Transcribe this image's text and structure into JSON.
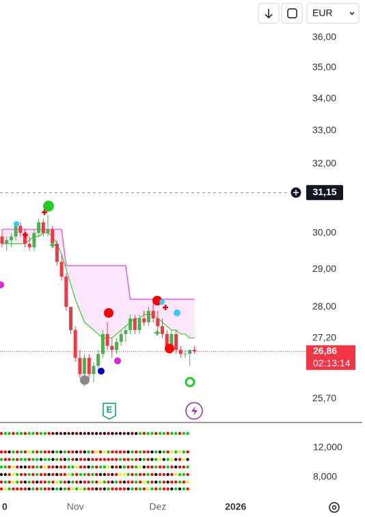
{
  "toolbar": {
    "currency": "EUR"
  },
  "chart_data": {
    "type": "candlestick",
    "log_scale": true,
    "ylim": [
      25.17,
      37.28
    ],
    "yticks": [
      {
        "value": 36,
        "label": "36,00"
      },
      {
        "value": 35,
        "label": "35,00"
      },
      {
        "value": 34,
        "label": "34,00"
      },
      {
        "value": 33,
        "label": "33,00"
      },
      {
        "value": 32,
        "label": "32,00"
      },
      {
        "value": 30,
        "label": "30,00"
      },
      {
        "value": 29,
        "label": "29,00"
      },
      {
        "value": 28,
        "label": "28,00"
      },
      {
        "value": 27.2,
        "label": "27,20"
      },
      {
        "value": 25.7,
        "label": "25,70"
      }
    ],
    "categories": [
      "0",
      null,
      null,
      null,
      null,
      null,
      null,
      null,
      null,
      null,
      null,
      null,
      null,
      null,
      null,
      null,
      "Nov",
      null,
      null,
      null,
      null,
      null,
      null,
      null,
      null,
      null,
      null,
      null,
      null,
      null,
      null,
      null,
      null,
      null,
      "Dez",
      null,
      null,
      null,
      null,
      null,
      null,
      null,
      null,
      null,
      null,
      null,
      null,
      null,
      null,
      null,
      null,
      "2026"
    ],
    "open": [
      29.9,
      29.7,
      29.8,
      29.9,
      30.2,
      30.0,
      29.7,
      29.6,
      30.0,
      30.3,
      30.0,
      30.1,
      29.7,
      29.2,
      28.8,
      28.0,
      27.4,
      26.7,
      26.3,
      26.7,
      26.3,
      26.5,
      26.8,
      27.3,
      27.0,
      26.9,
      27.1,
      27.3,
      27.4,
      27.7,
      27.4,
      27.7,
      27.6,
      27.9,
      27.7,
      27.5,
      27.3,
      27.0,
      27.3,
      26.9,
      26.8,
      26.8,
      26.9,
      null,
      null,
      null,
      null,
      null,
      null,
      null,
      null,
      null
    ],
    "high": [
      30.1,
      29.9,
      30.0,
      30.3,
      30.3,
      30.1,
      29.9,
      30.1,
      30.4,
      30.4,
      30.5,
      30.2,
      29.8,
      29.4,
      28.9,
      28.0,
      27.5,
      26.9,
      26.8,
      26.8,
      26.6,
      26.9,
      27.4,
      27.6,
      27.2,
      27.2,
      27.4,
      27.5,
      27.8,
      27.8,
      27.8,
      27.9,
      28.0,
      28.1,
      27.9,
      27.7,
      27.4,
      27.4,
      27.4,
      27.0,
      26.9,
      26.9,
      27.0,
      null,
      null,
      null,
      null,
      null,
      null,
      null,
      null,
      null
    ],
    "low": [
      29.6,
      29.5,
      29.6,
      29.8,
      29.9,
      29.6,
      29.5,
      29.5,
      29.9,
      29.9,
      29.9,
      29.6,
      29.1,
      28.7,
      27.9,
      27.3,
      26.6,
      26.2,
      26.0,
      26.2,
      26.1,
      26.4,
      26.7,
      26.9,
      26.7,
      26.8,
      27.0,
      27.1,
      27.3,
      27.3,
      27.3,
      27.5,
      27.5,
      27.6,
      27.4,
      27.2,
      26.9,
      26.9,
      26.8,
      26.7,
      26.7,
      26.5,
      26.8,
      null,
      null,
      null,
      null,
      null,
      null,
      null,
      null,
      null
    ],
    "close": [
      29.7,
      29.8,
      29.9,
      30.2,
      30.0,
      29.7,
      29.6,
      30.0,
      30.3,
      30.0,
      30.1,
      29.7,
      29.2,
      28.8,
      28.0,
      27.4,
      26.7,
      26.3,
      26.7,
      26.3,
      26.5,
      26.8,
      27.3,
      27.0,
      26.9,
      27.1,
      27.3,
      27.4,
      27.7,
      27.4,
      27.7,
      27.6,
      27.9,
      27.7,
      27.5,
      27.3,
      27.0,
      27.3,
      26.9,
      26.8,
      26.8,
      26.9,
      26.86,
      null,
      null,
      null,
      null,
      null,
      null,
      null,
      null,
      null
    ],
    "up_color": "#4caf50",
    "down_color": "#f23645",
    "series": [
      {
        "color": "#e040e0",
        "values": [
          30.1,
          30.1,
          30.1,
          30.1,
          30.1,
          30.1,
          30.1,
          30.1,
          30.1,
          30.1,
          30.1,
          30.1,
          30.1,
          30.1,
          29.1,
          29.1,
          29.1,
          29.1,
          29.1,
          29.1,
          29.1,
          29.1,
          29.1,
          29.1,
          29.1,
          29.1,
          29.1,
          29.1,
          28.2,
          28.2,
          28.2,
          28.2,
          28.2,
          28.2,
          28.2,
          28.2,
          28.2,
          28.2,
          28.2,
          28.2,
          28.2,
          28.2,
          28.2,
          null,
          null,
          null,
          null,
          null,
          null,
          null,
          null,
          null
        ]
      },
      {
        "color": "#33cc33",
        "values": [
          29.7,
          29.7,
          29.7,
          29.7,
          29.7,
          29.7,
          29.8,
          29.9,
          29.9,
          30.0,
          30.0,
          29.9,
          29.7,
          29.4,
          29.0,
          28.6,
          28.2,
          27.9,
          27.6,
          27.5,
          27.4,
          27.3,
          27.2,
          27.2,
          27.2,
          27.3,
          27.4,
          27.5,
          27.6,
          27.7,
          27.7,
          27.8,
          27.8,
          27.8,
          27.7,
          27.6,
          27.5,
          27.4,
          27.4,
          27.3,
          27.3,
          27.2,
          27.2,
          null,
          null,
          null,
          null,
          null,
          null,
          null,
          null,
          null
        ]
      }
    ],
    "crosshair_price": {
      "value": 31.15,
      "label": "31,15"
    },
    "last_price": {
      "value": 26.86,
      "label": "26,86"
    },
    "countdown": "02:13:14",
    "volume_ticks": [
      "12,000",
      "8,000"
    ]
  }
}
